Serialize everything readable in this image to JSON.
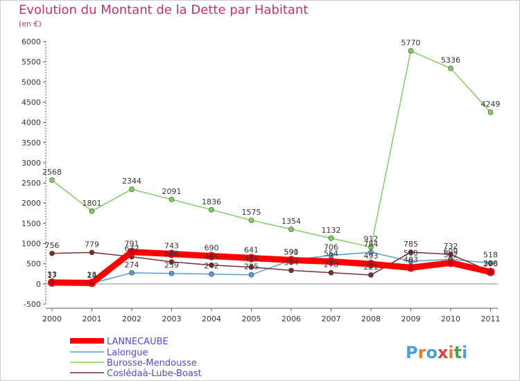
{
  "title": "Evolution du Montant de la Dette par Habitant",
  "subtitle": "(en €)",
  "logo": {
    "letters": [
      "P",
      "r",
      "o",
      "x",
      "i",
      "t",
      "i"
    ],
    "colors": [
      "#4aa0e0",
      "#e87a2a",
      "#4aa0e0",
      "#e04040",
      "#e87a2a",
      "#50a050",
      "#4aa0e0"
    ]
  },
  "chart_data": {
    "type": "line",
    "x": [
      "2000",
      "2001",
      "2002",
      "2003",
      "2004",
      "2005",
      "2006",
      "2007",
      "2008",
      "2009",
      "2010",
      "2011"
    ],
    "ylim": [
      -500,
      6000
    ],
    "yticks": [
      "-500",
      "0",
      "500",
      "1000",
      "1500",
      "2000",
      "2500",
      "3000",
      "3500",
      "4000",
      "4500",
      "5000",
      "5500",
      "6000"
    ],
    "grid": false,
    "legend_position": "bottom-left",
    "series": [
      {
        "name": "LANNECAUBE",
        "color": "#ff0000",
        "values": [
          33,
          25,
          791,
          743,
          690,
          641,
          590,
          554,
          493,
          403,
          522,
          296
        ],
        "labels": [
          "33",
          "25",
          "791",
          "743",
          "690",
          "641",
          "590",
          "554",
          "493",
          "403",
          "522",
          "296"
        ]
      },
      {
        "name": "Lalongue",
        "color": "#5a9bd5",
        "values": [
          17,
          14,
          274,
          259,
          242,
          225,
          591,
          706,
          784,
          560,
          609,
          518
        ],
        "labels": [
          "17",
          "14",
          "274",
          "259",
          "242",
          "225",
          "591",
          "706",
          "784",
          "560",
          "609",
          "518"
        ]
      },
      {
        "name": "Burosse-Mendousse",
        "color": "#80d060",
        "values": [
          2568,
          1801,
          2344,
          2091,
          1836,
          1575,
          1354,
          1132,
          912,
          5770,
          5336,
          4249
        ],
        "labels": [
          "2568",
          "1801",
          "2344",
          "2091",
          "1836",
          "1575",
          "1354",
          "1132",
          "912",
          "5770",
          "5336",
          "4249"
        ]
      },
      {
        "name": "Coslédaà-Lube-Boast",
        "color": "#7a2c30",
        "values": [
          756,
          779,
          672,
          546,
          465,
          415,
          334,
          278,
          221,
          785,
          732,
          308
        ],
        "labels": [
          "756",
          "779",
          "672",
          "546",
          "465",
          "415",
          "334",
          "278",
          "221",
          "785",
          "732",
          "308"
        ]
      }
    ]
  }
}
